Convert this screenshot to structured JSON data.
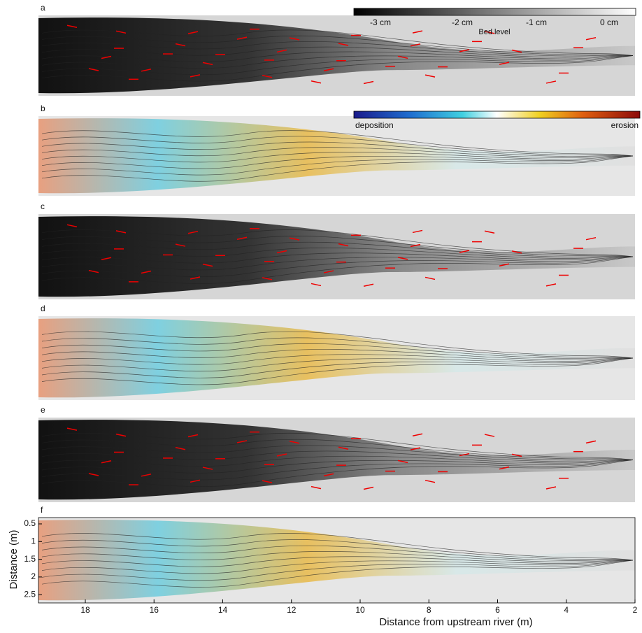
{
  "panels": [
    {
      "label": "a"
    },
    {
      "label": "b"
    },
    {
      "label": "c"
    },
    {
      "label": "d"
    },
    {
      "label": "e"
    },
    {
      "label": "f"
    }
  ],
  "colorbar_bed": {
    "ticks": [
      "-3 cm",
      "-2 cm",
      "-1 cm",
      "0 cm"
    ],
    "label": "Bed level"
  },
  "colorbar_change": {
    "left": "deposition",
    "right": "erosion"
  },
  "axes": {
    "x_label": "Distance from upstream river (m)",
    "x_ticks": [
      "18",
      "16",
      "14",
      "12",
      "10",
      "8",
      "6",
      "4",
      "2"
    ],
    "y_label": "Distance (m)",
    "y_ticks": [
      "0.5",
      "1",
      "1.5",
      "2",
      "2.5"
    ]
  }
}
